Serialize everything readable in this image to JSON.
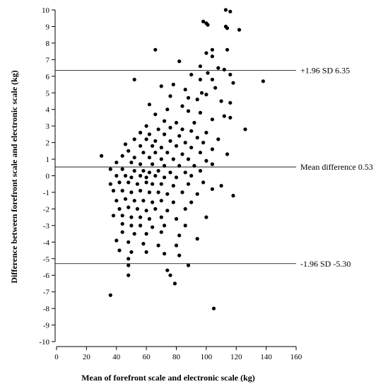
{
  "chart_data": {
    "type": "scatter",
    "xlabel": "Mean of forefront scale and electronic scale (kg)",
    "ylabel": "Difference between forefront scale and electronic scale (kg)",
    "xlim": [
      0,
      160
    ],
    "ylim": [
      -10,
      10
    ],
    "x_ticks": [
      "0",
      "20",
      "40",
      "60",
      "80",
      "100",
      "120",
      "140",
      "160"
    ],
    "y_ticks": [
      "-10",
      "-9",
      "-8",
      "-7",
      "-6",
      "-5",
      "-4",
      "-3",
      "-2",
      "-1",
      "0",
      "1",
      "2",
      "3",
      "4",
      "5",
      "6",
      "7",
      "8",
      "9",
      "10"
    ],
    "reference_lines": [
      {
        "value": 6.35,
        "label": "+1.96 SD 6.35"
      },
      {
        "value": 0.53,
        "label": "Mean difference 0.53"
      },
      {
        "value": -5.3,
        "label": "-1.96 SD -5.30"
      }
    ],
    "grid": false,
    "points": [
      [
        113,
        10.0
      ],
      [
        116,
        9.9
      ],
      [
        98,
        9.3
      ],
      [
        100,
        9.2
      ],
      [
        101,
        9.1
      ],
      [
        113,
        9.0
      ],
      [
        114,
        8.9
      ],
      [
        122,
        8.8
      ],
      [
        104,
        7.6
      ],
      [
        114,
        7.6
      ],
      [
        66,
        7.6
      ],
      [
        100,
        7.4
      ],
      [
        104,
        7.2
      ],
      [
        82,
        6.9
      ],
      [
        96,
        6.6
      ],
      [
        108,
        6.5
      ],
      [
        112,
        6.4
      ],
      [
        101,
        6.2
      ],
      [
        90,
        6.1
      ],
      [
        116,
        6.1
      ],
      [
        52,
        5.8
      ],
      [
        96,
        5.8
      ],
      [
        104,
        5.8
      ],
      [
        138,
        5.7
      ],
      [
        118,
        5.6
      ],
      [
        78,
        5.5
      ],
      [
        70,
        5.4
      ],
      [
        86,
        5.2
      ],
      [
        106,
        5.3
      ],
      [
        97,
        5.0
      ],
      [
        100,
        4.9
      ],
      [
        76,
        4.8
      ],
      [
        88,
        4.7
      ],
      [
        94,
        4.6
      ],
      [
        110,
        4.5
      ],
      [
        62,
        4.3
      ],
      [
        84,
        4.2
      ],
      [
        116,
        4.4
      ],
      [
        74,
        4.0
      ],
      [
        88,
        3.9
      ],
      [
        96,
        3.8
      ],
      [
        112,
        3.6
      ],
      [
        66,
        3.7
      ],
      [
        104,
        3.4
      ],
      [
        72,
        3.3
      ],
      [
        80,
        3.2
      ],
      [
        92,
        3.2
      ],
      [
        116,
        3.5
      ],
      [
        126,
        2.8
      ],
      [
        60,
        3.0
      ],
      [
        68,
        2.8
      ],
      [
        76,
        2.9
      ],
      [
        84,
        2.8
      ],
      [
        90,
        2.7
      ],
      [
        100,
        2.6
      ],
      [
        56,
        2.6
      ],
      [
        62,
        2.5
      ],
      [
        72,
        2.5
      ],
      [
        82,
        2.4
      ],
      [
        94,
        2.3
      ],
      [
        52,
        2.2
      ],
      [
        60,
        2.2
      ],
      [
        66,
        2.1
      ],
      [
        76,
        2.1
      ],
      [
        86,
        2.0
      ],
      [
        98,
        2.0
      ],
      [
        108,
        2.2
      ],
      [
        46,
        1.9
      ],
      [
        56,
        1.8
      ],
      [
        64,
        1.8
      ],
      [
        70,
        1.7
      ],
      [
        80,
        1.8
      ],
      [
        90,
        1.7
      ],
      [
        104,
        1.6
      ],
      [
        48,
        1.5
      ],
      [
        58,
        1.4
      ],
      [
        66,
        1.4
      ],
      [
        74,
        1.4
      ],
      [
        84,
        1.3
      ],
      [
        96,
        1.4
      ],
      [
        114,
        1.3
      ],
      [
        30,
        1.2
      ],
      [
        44,
        1.2
      ],
      [
        52,
        1.1
      ],
      [
        62,
        1.1
      ],
      [
        70,
        1.0
      ],
      [
        78,
        1.0
      ],
      [
        88,
        1.0
      ],
      [
        100,
        0.9
      ],
      [
        40,
        0.8
      ],
      [
        50,
        0.8
      ],
      [
        56,
        0.7
      ],
      [
        64,
        0.7
      ],
      [
        72,
        0.6
      ],
      [
        82,
        0.6
      ],
      [
        92,
        0.6
      ],
      [
        104,
        0.7
      ],
      [
        36,
        0.4
      ],
      [
        44,
        0.4
      ],
      [
        52,
        0.3
      ],
      [
        58,
        0.3
      ],
      [
        62,
        0.2
      ],
      [
        68,
        0.3
      ],
      [
        76,
        0.2
      ],
      [
        86,
        0.2
      ],
      [
        96,
        0.3
      ],
      [
        40,
        0.0
      ],
      [
        46,
        0.0
      ],
      [
        50,
        -0.1
      ],
      [
        56,
        0.0
      ],
      [
        60,
        -0.1
      ],
      [
        66,
        0.0
      ],
      [
        72,
        -0.1
      ],
      [
        80,
        -0.1
      ],
      [
        90,
        0.0
      ],
      [
        36,
        -0.5
      ],
      [
        42,
        -0.4
      ],
      [
        48,
        -0.4
      ],
      [
        54,
        -0.5
      ],
      [
        60,
        -0.4
      ],
      [
        64,
        -0.5
      ],
      [
        70,
        -0.5
      ],
      [
        78,
        -0.6
      ],
      [
        88,
        -0.5
      ],
      [
        98,
        -0.4
      ],
      [
        110,
        -0.6
      ],
      [
        38,
        -0.9
      ],
      [
        44,
        -0.9
      ],
      [
        50,
        -1.0
      ],
      [
        56,
        -0.9
      ],
      [
        62,
        -1.0
      ],
      [
        68,
        -1.0
      ],
      [
        74,
        -1.1
      ],
      [
        84,
        -1.0
      ],
      [
        94,
        -1.1
      ],
      [
        104,
        -0.8
      ],
      [
        118,
        -1.2
      ],
      [
        40,
        -1.5
      ],
      [
        46,
        -1.4
      ],
      [
        52,
        -1.5
      ],
      [
        58,
        -1.5
      ],
      [
        64,
        -1.6
      ],
      [
        70,
        -1.5
      ],
      [
        78,
        -1.6
      ],
      [
        90,
        -1.6
      ],
      [
        42,
        -2.0
      ],
      [
        48,
        -1.9
      ],
      [
        54,
        -2.0
      ],
      [
        60,
        -2.1
      ],
      [
        66,
        -2.0
      ],
      [
        74,
        -2.1
      ],
      [
        86,
        -2.0
      ],
      [
        38,
        -2.4
      ],
      [
        44,
        -2.4
      ],
      [
        50,
        -2.5
      ],
      [
        56,
        -2.5
      ],
      [
        62,
        -2.6
      ],
      [
        70,
        -2.5
      ],
      [
        80,
        -2.6
      ],
      [
        100,
        -2.5
      ],
      [
        44,
        -2.9
      ],
      [
        50,
        -3.0
      ],
      [
        56,
        -3.0
      ],
      [
        64,
        -3.1
      ],
      [
        72,
        -3.0
      ],
      [
        86,
        -3.0
      ],
      [
        44,
        -3.4
      ],
      [
        52,
        -3.5
      ],
      [
        60,
        -3.5
      ],
      [
        70,
        -3.4
      ],
      [
        82,
        -3.6
      ],
      [
        94,
        -3.8
      ],
      [
        40,
        -3.9
      ],
      [
        48,
        -4.0
      ],
      [
        58,
        -4.1
      ],
      [
        68,
        -4.2
      ],
      [
        80,
        -4.2
      ],
      [
        42,
        -4.5
      ],
      [
        50,
        -4.6
      ],
      [
        60,
        -4.6
      ],
      [
        72,
        -4.7
      ],
      [
        82,
        -4.8
      ],
      [
        48,
        -5.0
      ],
      [
        48,
        -5.4
      ],
      [
        88,
        -5.4
      ],
      [
        74,
        -5.7
      ],
      [
        48,
        -6.0
      ],
      [
        76,
        -6.0
      ],
      [
        79,
        -6.5
      ],
      [
        36,
        -7.2
      ],
      [
        105,
        -8.0
      ]
    ]
  }
}
